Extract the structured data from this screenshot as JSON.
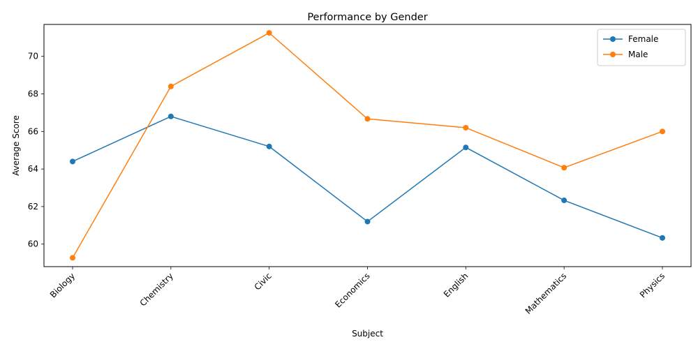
{
  "chart_data": {
    "type": "line",
    "title": "Performance by Gender",
    "xlabel": "Subject",
    "ylabel": "Average Score",
    "categories": [
      "Biology",
      "Chemistry",
      "Civic",
      "Economics",
      "English",
      "Mathematics",
      "Physics"
    ],
    "series": [
      {
        "name": "Female",
        "color": "#1f77b4",
        "marker": "circle",
        "values": [
          64.4,
          66.8,
          65.2,
          61.2,
          65.15,
          62.33,
          60.33
        ]
      },
      {
        "name": "Male",
        "color": "#ff7f0e",
        "marker": "circle",
        "values": [
          59.27,
          68.4,
          71.25,
          66.67,
          66.2,
          64.07,
          66.0
        ]
      }
    ],
    "ylim": [
      58.8,
      71.7
    ],
    "yticks": [
      60,
      62,
      64,
      66,
      68,
      70
    ],
    "grid": false,
    "legend_position": "top-right",
    "x_tick_rotation": 45
  }
}
